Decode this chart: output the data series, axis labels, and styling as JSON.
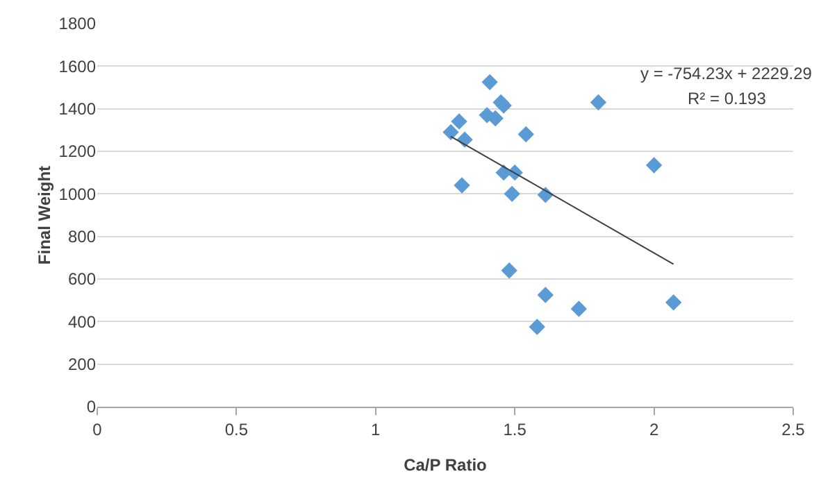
{
  "chart_data": {
    "type": "scatter",
    "xlabel": "Ca/P Ratio",
    "ylabel": "Final Weight",
    "series": [
      {
        "color": "#5b9bd5",
        "x": [
          1.41,
          1.3,
          1.27,
          1.32,
          1.4,
          1.43,
          1.45,
          1.46,
          1.54,
          1.8,
          2.0,
          1.46,
          1.5,
          1.49,
          1.61,
          1.31,
          1.48,
          1.61,
          1.58,
          1.73,
          2.07
        ],
        "values": [
          1525,
          1340,
          1290,
          1255,
          1370,
          1355,
          1430,
          1415,
          1280,
          1430,
          1135,
          1100,
          1100,
          1000,
          995,
          1040,
          640,
          525,
          375,
          460,
          490
        ],
        "marker": "diamond"
      },
      {
        "type": "line",
        "color": "#404040",
        "x": [
          1.27,
          2.07
        ],
        "values": [
          1270,
          670
        ],
        "marker": "none"
      }
    ],
    "annotations": [
      "y = -754.23x + 2229.29",
      "R² = 0.193"
    ],
    "xlim": [
      0,
      2.5
    ],
    "xticks": [
      0,
      0.5,
      1,
      1.5,
      2,
      2.5
    ],
    "ylim": [
      0,
      1800
    ],
    "yticks": [
      0,
      200,
      400,
      600,
      800,
      1000,
      1200,
      1400,
      1600,
      1800
    ],
    "grid": "y"
  }
}
